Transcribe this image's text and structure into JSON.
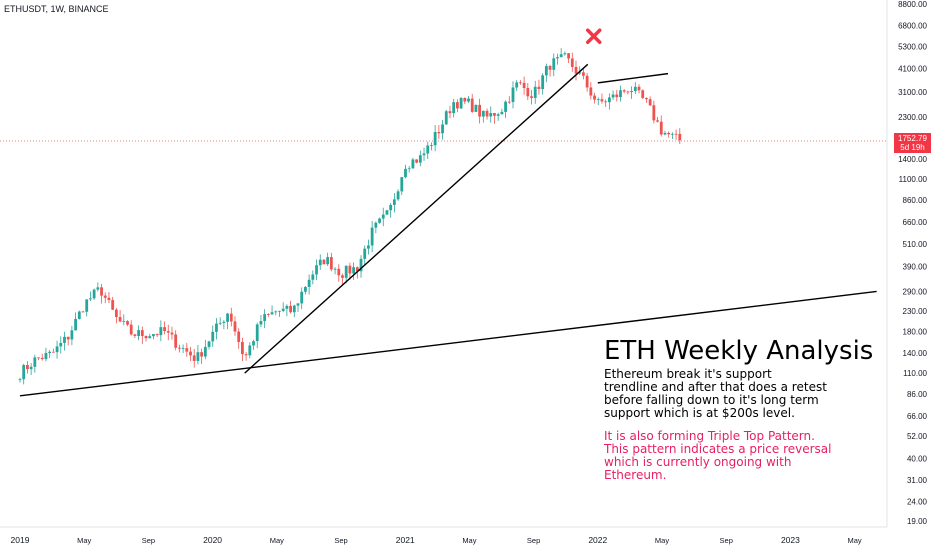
{
  "header": {
    "symbol": "ETHUSDT, 1W, BINANCE"
  },
  "price_tag": {
    "price": "1752.79",
    "countdown": "5d 19h"
  },
  "annotation": {
    "title": "ETH Weekly Analysis",
    "paragraph1": "Ethereum break it's support trendline and after that does a retest before falling down to it's long term support which is at $200s level.",
    "paragraph2": "It is also forming Triple Top Pattern. This pattern indicates a price reversal which is currently ongoing with Ethereum.",
    "paragraph2_color": "#e91e63"
  },
  "colors": {
    "up": "#26a69a",
    "down": "#ef5350",
    "marker": "#f23645",
    "lines": "#000000"
  },
  "chart_data": {
    "type": "candlestick",
    "y_scale": "log",
    "y_ticks": [
      "8800.00",
      "6800.00",
      "5300.00",
      "4100.00",
      "3100.00",
      "2300.00",
      "1400.00",
      "1100.00",
      "860.00",
      "660.00",
      "510.00",
      "390.00",
      "290.00",
      "230.00",
      "180.00",
      "140.00",
      "110.00",
      "86.00",
      "66.00",
      "52.00",
      "40.00",
      "31.00",
      "24.00",
      "19.00"
    ],
    "x_ticks": [
      "2019",
      "May",
      "Sep",
      "2020",
      "May",
      "Sep",
      "2021",
      "May",
      "Sep",
      "2022",
      "May",
      "Sep",
      "2023",
      "May"
    ],
    "close_points": [
      [
        "2019-01",
        110
      ],
      [
        "2019-02",
        130
      ],
      [
        "2019-03",
        138
      ],
      [
        "2019-04",
        170
      ],
      [
        "2019-05",
        250
      ],
      [
        "2019-06",
        300
      ],
      [
        "2019-07",
        210
      ],
      [
        "2019-08",
        175
      ],
      [
        "2019-09",
        175
      ],
      [
        "2019-10",
        180
      ],
      [
        "2019-11",
        150
      ],
      [
        "2019-12",
        130
      ],
      [
        "2020-01",
        175
      ],
      [
        "2020-02",
        230
      ],
      [
        "2020-03",
        130
      ],
      [
        "2020-04",
        205
      ],
      [
        "2020-05",
        230
      ],
      [
        "2020-06",
        230
      ],
      [
        "2020-07",
        340
      ],
      [
        "2020-08",
        430
      ],
      [
        "2020-09",
        360
      ],
      [
        "2020-10",
        385
      ],
      [
        "2020-11",
        600
      ],
      [
        "2020-12",
        740
      ],
      [
        "2021-01",
        1320
      ],
      [
        "2021-02",
        1420
      ],
      [
        "2021-03",
        1900
      ],
      [
        "2021-04",
        2750
      ],
      [
        "2021-05",
        2700
      ],
      [
        "2021-06",
        2270
      ],
      [
        "2021-07",
        2530
      ],
      [
        "2021-08",
        3430
      ],
      [
        "2021-09",
        3000
      ],
      [
        "2021-10",
        4300
      ],
      [
        "2021-11",
        4630
      ],
      [
        "2021-12",
        3680
      ],
      [
        "2022-01",
        2690
      ],
      [
        "2022-02",
        2920
      ],
      [
        "2022-03",
        3280
      ],
      [
        "2022-04",
        2730
      ],
      [
        "2022-05",
        1940
      ],
      [
        "2022-06",
        1750
      ]
    ],
    "last_price": 1752.79,
    "trendlines": [
      {
        "name": "support trendline",
        "from": [
          "2020-03",
          110
        ],
        "to": [
          "2021-12",
          4300
        ]
      },
      {
        "name": "long term support",
        "from": [
          "2019-01",
          84
        ],
        "to": [
          "2023-06",
          290
        ]
      },
      {
        "name": "triple top line",
        "from": [
          "2022-01",
          3450
        ],
        "to": [
          "2022-05",
          3850
        ]
      }
    ],
    "markers": [
      {
        "type": "x",
        "at": [
          "2021-12",
          6000
        ]
      }
    ]
  }
}
